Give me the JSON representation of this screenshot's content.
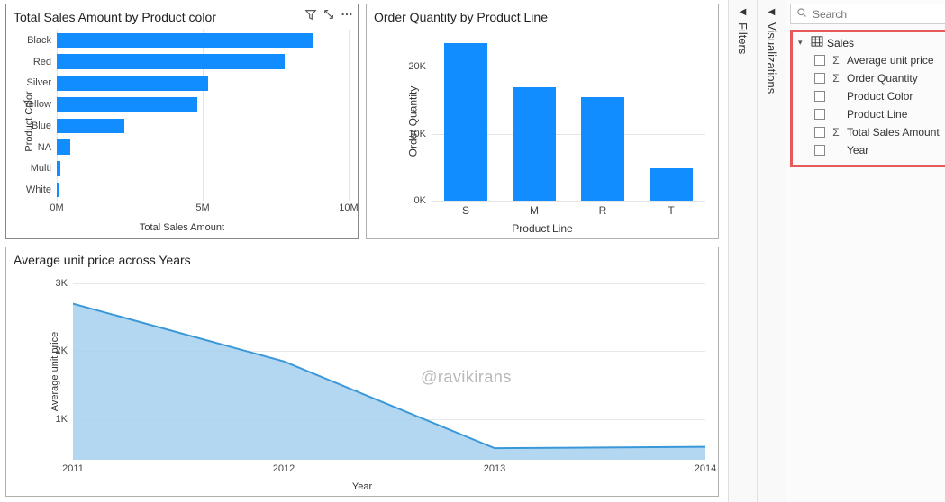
{
  "panes": {
    "filters_label": "Filters",
    "visualizations_label": "Visualizations",
    "search_placeholder": "Search"
  },
  "fields": {
    "table_name": "Sales",
    "items": [
      {
        "label": "Average unit price",
        "has_sigma": true
      },
      {
        "label": "Order Quantity",
        "has_sigma": true
      },
      {
        "label": "Product Color",
        "has_sigma": false
      },
      {
        "label": "Product Line",
        "has_sigma": false
      },
      {
        "label": "Total Sales Amount",
        "has_sigma": true
      },
      {
        "label": "Year",
        "has_sigma": false
      }
    ],
    "highlight_border_color": "#e85a5a"
  },
  "watermark": "@ravikirans",
  "chart_hbar": {
    "type": "horizontal-bar",
    "title": "Total Sales Amount by Product color",
    "y_axis_title": "Product Color",
    "x_axis_title": "Total Sales Amount",
    "categories": [
      "Black",
      "Red",
      "Silver",
      "Yellow",
      "Blue",
      "NA",
      "Multi",
      "White"
    ],
    "values_millions": [
      8.8,
      7.8,
      5.2,
      4.8,
      2.3,
      0.45,
      0.12,
      0.1
    ],
    "x_ticks": [
      0,
      5,
      10
    ],
    "x_tick_labels": [
      "0M",
      "5M",
      "10M"
    ],
    "x_max": 10,
    "bar_color": "#118DFF",
    "grid_color": "#e3e3e3",
    "label_fontsize": 11
  },
  "chart_vbar": {
    "type": "bar",
    "title": "Order Quantity by Product Line",
    "y_axis_title": "Order Quantity",
    "x_axis_title": "Product Line",
    "categories": [
      "S",
      "M",
      "R",
      "T"
    ],
    "values": [
      23500,
      17000,
      15500,
      4800
    ],
    "y_ticks": [
      0,
      10000,
      20000
    ],
    "y_tick_labels": [
      "0K",
      "10K",
      "20K"
    ],
    "y_max": 25000,
    "bar_color": "#118DFF",
    "grid_color": "#e3e3e3",
    "label_fontsize": 12
  },
  "chart_area": {
    "type": "area",
    "title": "Average unit price across Years",
    "y_axis_title": "Average unit price",
    "x_axis_title": "Year",
    "x_values": [
      2011,
      2012,
      2013,
      2014
    ],
    "y_values": [
      2700,
      1850,
      570,
      590
    ],
    "y_ticks": [
      1000,
      2000,
      3000
    ],
    "y_tick_labels": [
      "1K",
      "2K",
      "3K"
    ],
    "y_min": 400,
    "y_max": 3000,
    "line_color": "#3a98d8",
    "fill_color": "#a7d0ef",
    "fill_opacity": 0.85,
    "line_width": 2,
    "grid_color": "#e8e8e8"
  }
}
